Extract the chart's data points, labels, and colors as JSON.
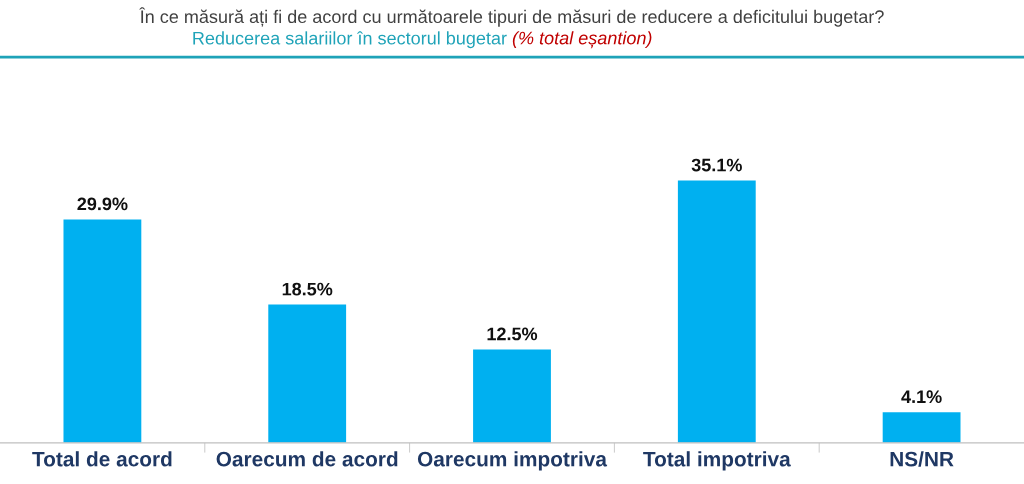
{
  "chart_data": {
    "type": "bar",
    "title": "În ce măsură ați fi de acord cu următoarele tipuri de măsuri de reducere a deficitului bugetar?",
    "subtitle": "Reducerea salariilor în sectorul bugetar",
    "annotations": [
      "(% total eșantion)"
    ],
    "categories": [
      "Total de acord",
      "Oarecum de acord",
      "Oarecum impotriva",
      "Total impotriva",
      "NS/NR"
    ],
    "values": [
      29.9,
      18.5,
      12.5,
      35.1,
      4.1
    ],
    "value_labels": [
      "29.9%",
      "18.5%",
      "12.5%",
      "35.1%",
      "4.1%"
    ],
    "color": "#00b0f0",
    "tick_labels": "x",
    "grid": false,
    "legend": false
  }
}
